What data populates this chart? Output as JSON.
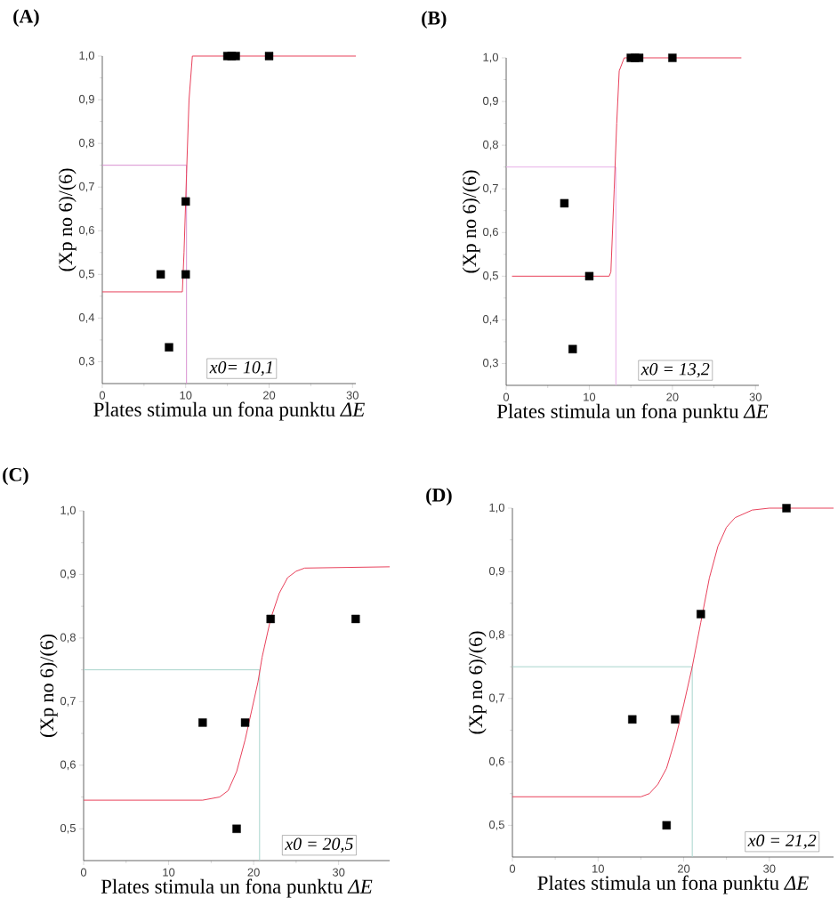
{
  "chart_data": [
    {
      "type": "scatter",
      "title": "(A)",
      "xlabel": "Plates stimula un fona punktu *ΔE*",
      "ylabel": "(Xp no 6)/(6)",
      "annotations": [
        "x0= 10,1"
      ],
      "xlim": [
        0,
        30.4
      ],
      "ylim": [
        0.25,
        1.0
      ],
      "xticks": [
        0,
        10,
        20,
        30
      ],
      "yticks": [
        {
          "value": 0.3,
          "label": "0,3"
        },
        {
          "value": 0.4,
          "label": "0,4"
        },
        {
          "value": 0.5,
          "label": "0,5"
        },
        {
          "value": 0.6,
          "label": "0,6"
        },
        {
          "value": 0.7,
          "label": "0,7"
        },
        {
          "value": 0.8,
          "label": "0,8"
        },
        {
          "value": 0.9,
          "label": "0,9"
        },
        {
          "value": 1.0,
          "label": "1,0"
        }
      ],
      "grid": false,
      "series": [
        {
          "type": "line",
          "color": "#d890d0",
          "x": [
            0,
            10.1,
            10.1
          ],
          "values": [
            0.75,
            0.75,
            0.25
          ]
        },
        {
          "type": "line",
          "color": "#e8405a",
          "x": [
            0,
            9.6,
            9.8,
            10.1,
            10.4,
            10.8,
            30.4
          ],
          "values": [
            0.46,
            0.46,
            0.55,
            0.73,
            0.9,
            1.0,
            1.0
          ]
        },
        {
          "type": "scatter",
          "color": "#000000",
          "marker": "square",
          "x": [
            7,
            8,
            10,
            10,
            15,
            15.5,
            16,
            20
          ],
          "values": [
            0.5,
            0.333,
            0.667,
            0.5,
            1.0,
            1.0,
            1.0,
            1.0
          ]
        }
      ]
    },
    {
      "type": "scatter",
      "title": "(B)",
      "xlabel": "Plates stimula un fona punktu *ΔE*",
      "ylabel": "(Xp no 6)/(6)",
      "annotations": [
        "x0 = 13,2"
      ],
      "xlim": [
        0,
        30.4
      ],
      "ylim": [
        0.25,
        1.0
      ],
      "xticks": [
        0,
        10,
        20,
        30
      ],
      "yticks": [
        {
          "value": 0.3,
          "label": "0,3"
        },
        {
          "value": 0.4,
          "label": "0,4"
        },
        {
          "value": 0.5,
          "label": "0,5"
        },
        {
          "value": 0.6,
          "label": "0,6"
        },
        {
          "value": 0.7,
          "label": "0,7"
        },
        {
          "value": 0.8,
          "label": "0,8"
        },
        {
          "value": 0.9,
          "label": "0,9"
        },
        {
          "value": 1.0,
          "label": "1,0"
        }
      ],
      "grid": false,
      "series": [
        {
          "type": "line",
          "color": "#e8b0e8",
          "x": [
            0,
            13.2,
            13.2
          ],
          "values": [
            0.75,
            0.75,
            0.25
          ]
        },
        {
          "type": "line",
          "color": "#e8405a",
          "x": [
            0.7,
            12.4,
            12.6,
            13.0,
            13.3,
            13.6,
            14.2,
            28.3
          ],
          "values": [
            0.5,
            0.5,
            0.51,
            0.7,
            0.85,
            0.97,
            1.0,
            1.0
          ]
        },
        {
          "type": "scatter",
          "color": "#000000",
          "marker": "square",
          "x": [
            7,
            8,
            10,
            15,
            15.5,
            16,
            20
          ],
          "values": [
            0.667,
            0.333,
            0.5,
            1.0,
            1.0,
            1.0,
            1.0
          ]
        }
      ]
    },
    {
      "type": "scatter",
      "title": "(C)",
      "xlabel": "Plates stimula un fona punktu *ΔE*",
      "ylabel": "(Xp no 6)/(6)",
      "annotations": [
        "x0 = 20,5"
      ],
      "xlim": [
        0,
        36
      ],
      "ylim": [
        0.45,
        1.0
      ],
      "xticks": [
        0,
        10,
        20,
        30
      ],
      "yticks": [
        {
          "value": 0.5,
          "label": "0,5"
        },
        {
          "value": 0.6,
          "label": "0,6"
        },
        {
          "value": 0.7,
          "label": "0,7"
        },
        {
          "value": 0.8,
          "label": "0,8"
        },
        {
          "value": 0.9,
          "label": "0,9"
        },
        {
          "value": 1.0,
          "label": "1,0"
        }
      ],
      "grid": false,
      "series": [
        {
          "type": "line",
          "color": "#a8d4cc",
          "x": [
            0,
            20.7,
            20.7
          ],
          "values": [
            0.75,
            0.75,
            0.45
          ]
        },
        {
          "type": "line",
          "color": "#e8405a",
          "x": [
            0,
            14,
            16,
            17,
            18,
            19,
            20,
            20.5,
            21,
            22,
            23,
            24,
            25,
            26,
            36
          ],
          "values": [
            0.545,
            0.545,
            0.55,
            0.56,
            0.59,
            0.64,
            0.7,
            0.73,
            0.77,
            0.83,
            0.87,
            0.895,
            0.905,
            0.91,
            0.912
          ]
        },
        {
          "type": "scatter",
          "color": "#000000",
          "marker": "square",
          "x": [
            14,
            18,
            19,
            22,
            32
          ],
          "values": [
            0.667,
            0.5,
            0.667,
            0.83,
            0.83
          ]
        }
      ]
    },
    {
      "type": "scatter",
      "title": "(D)",
      "xlabel": "Plates stimula un fona punktu *ΔE*",
      "ylabel": "(Xp no 6)/(6)",
      "annotations": [
        "x0 = 21,2"
      ],
      "xlim": [
        0,
        37.5
      ],
      "ylim": [
        0.45,
        1.0
      ],
      "xticks": [
        0,
        10,
        20,
        30
      ],
      "yticks": [
        {
          "value": 0.5,
          "label": "0,5"
        },
        {
          "value": 0.6,
          "label": "0,6"
        },
        {
          "value": 0.7,
          "label": "0,7"
        },
        {
          "value": 0.8,
          "label": "0,8"
        },
        {
          "value": 0.9,
          "label": "0,9"
        },
        {
          "value": 1.0,
          "label": "1,0"
        }
      ],
      "grid": false,
      "series": [
        {
          "type": "line",
          "color": "#a8d4cc",
          "x": [
            0,
            21.0,
            21.0
          ],
          "values": [
            0.75,
            0.75,
            0.45
          ]
        },
        {
          "type": "line",
          "color": "#e8405a",
          "x": [
            0,
            15,
            16,
            17,
            18,
            19,
            20,
            21,
            22,
            23,
            24,
            25,
            26,
            28,
            30,
            37.5
          ],
          "values": [
            0.545,
            0.545,
            0.55,
            0.565,
            0.59,
            0.635,
            0.69,
            0.75,
            0.82,
            0.89,
            0.94,
            0.97,
            0.985,
            0.997,
            1.0,
            1.0
          ]
        },
        {
          "type": "scatter",
          "color": "#000000",
          "marker": "square",
          "x": [
            14,
            18,
            19,
            22,
            32
          ],
          "values": [
            0.667,
            0.5,
            0.667,
            0.833,
            1.0
          ]
        }
      ]
    }
  ]
}
